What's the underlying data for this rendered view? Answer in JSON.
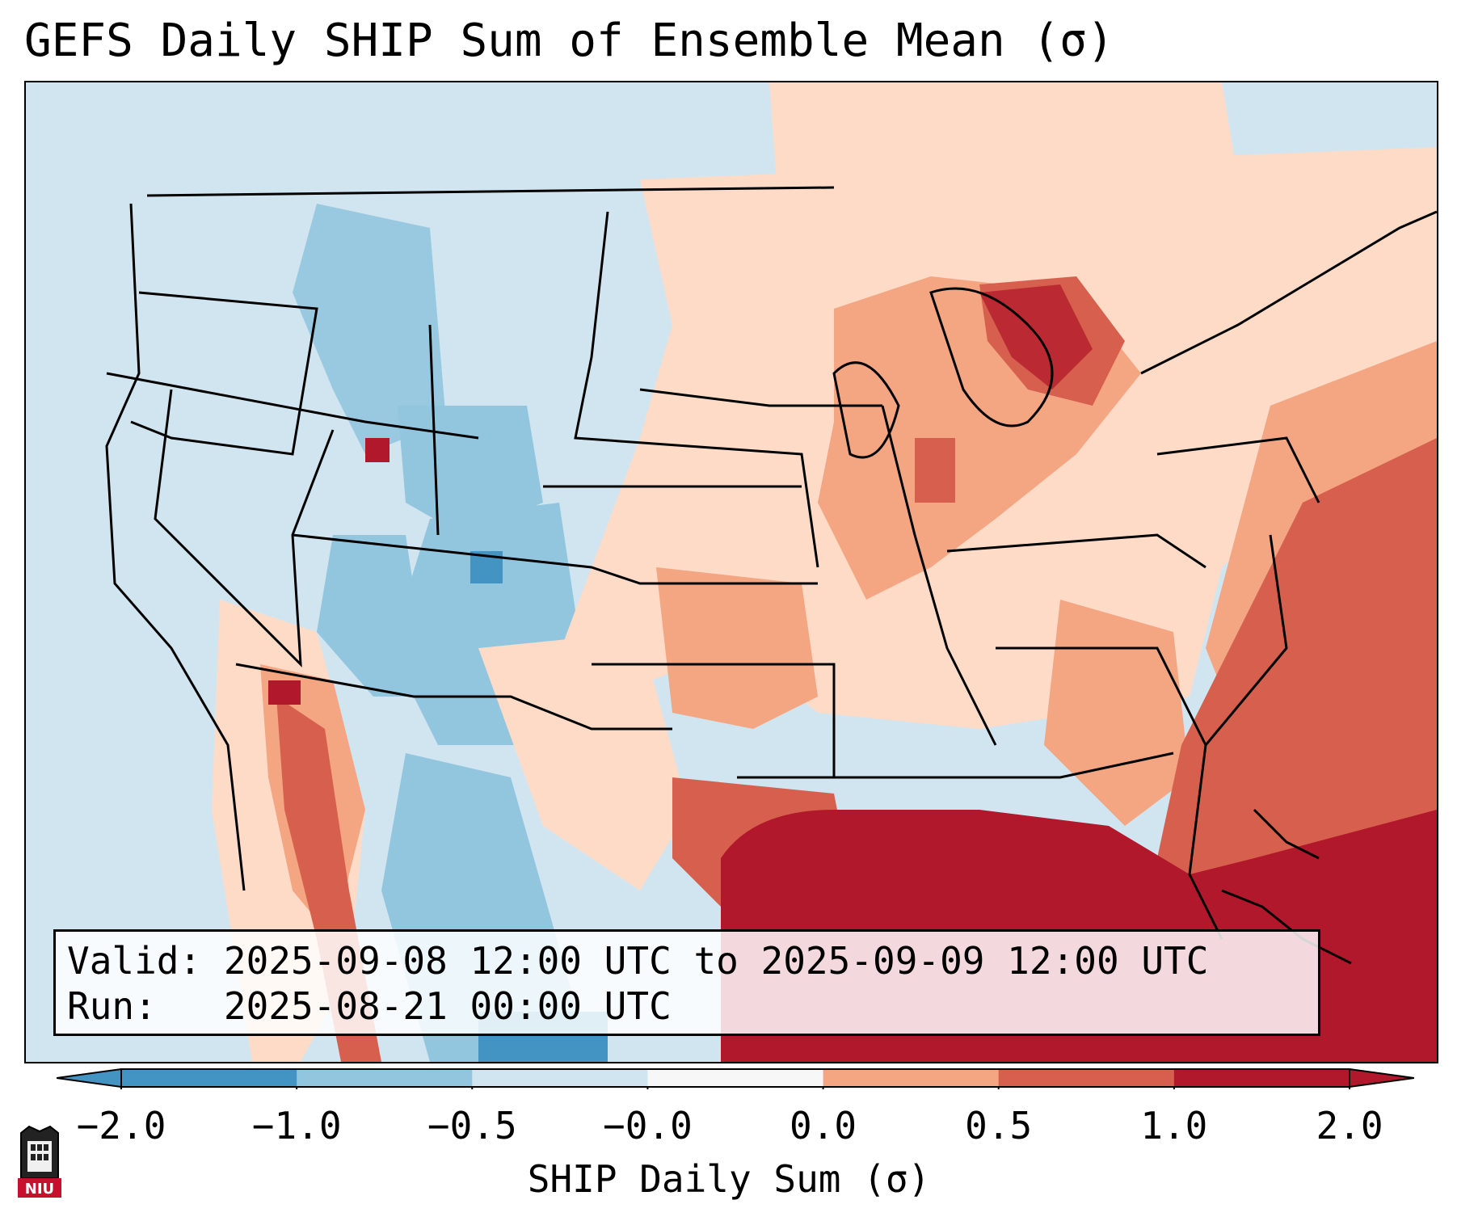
{
  "title": "GEFS Daily SHIP Sum of Ensemble Mean (σ)",
  "info": {
    "valid_label": "Valid:",
    "valid_value": "2025-09-08 12:00 UTC to 2025-09-09 12:00 UTC",
    "run_label": "Run:",
    "run_value": "2025-08-21 00:00 UTC"
  },
  "colorbar": {
    "label": "SHIP Daily Sum (σ)",
    "ticks": [
      "−2.0",
      "−1.0",
      "−0.5",
      "−0.0",
      "0.0",
      "0.5",
      "1.0",
      "2.0"
    ],
    "colors": [
      "#4393c3",
      "#92c5de",
      "#d1e5f0",
      "#f7f7f7",
      "#fddbc7",
      "#f4a582",
      "#d6604d",
      "#b2182b"
    ],
    "extend": "both"
  },
  "logo": {
    "text": "NIU"
  },
  "colors": {
    "strong_negative": "#4393c3",
    "negative": "#92c5de",
    "weak_negative": "#d1e5f0",
    "neutral": "#f7f7f7",
    "weak_positive": "#fddbc7",
    "positive": "#f4a582",
    "strong_positive": "#d6604d",
    "very_strong_positive": "#b2182b"
  }
}
